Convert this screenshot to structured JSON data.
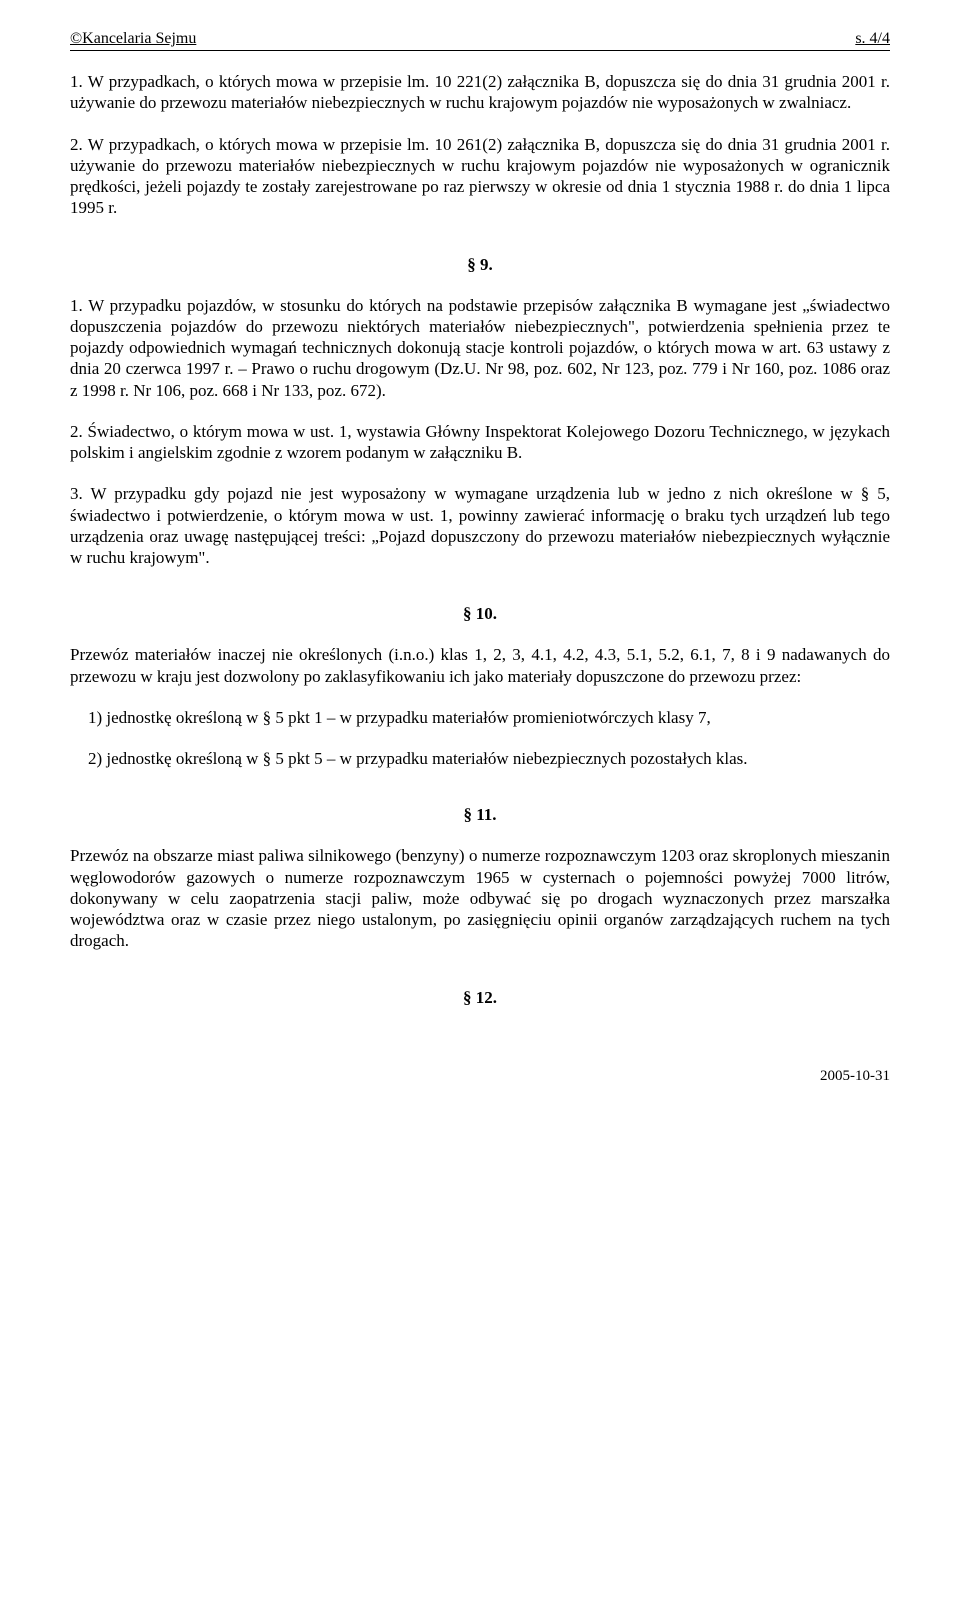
{
  "header": {
    "left": "©Kancelaria Sejmu",
    "right": "s. 4/4"
  },
  "p1": "1. W przypadkach, o których mowa w przepisie lm. 10 221(2) załącznika B, dopuszcza się do dnia 31 grudnia 2001 r. używanie do przewozu materiałów niebezpiecznych w ruchu krajowym pojazdów nie wyposażonych w zwalniacz.",
  "p2": "2. W przypadkach, o których mowa w przepisie lm. 10 261(2) załącznika B, dopuszcza się do dnia 31 grudnia 2001 r. używanie do przewozu materiałów niebezpiecznych w ruchu krajowym pojazdów nie wyposażonych w ogranicznik prędkości, jeżeli pojazdy te zostały zarejestrowane po raz pierwszy w okresie od dnia 1 stycznia 1988 r. do dnia 1 lipca 1995 r.",
  "s9": {
    "num": "§ 9.",
    "p1": "1. W przypadku pojazdów, w stosunku do których na podstawie przepisów załącznika B wymagane jest „świadectwo dopuszczenia pojazdów do przewozu niektórych materiałów niebezpiecznych\", potwierdzenia spełnienia przez te pojazdy odpowiednich wymagań technicznych dokonują stacje kontroli pojazdów, o których mowa w art. 63 ustawy z dnia 20 czerwca 1997 r. – Prawo o ruchu drogowym (Dz.U. Nr 98, poz. 602, Nr 123, poz. 779 i Nr 160, poz. 1086 oraz z 1998 r. Nr 106, poz. 668 i Nr 133, poz. 672).",
    "p2": "2. Świadectwo, o którym mowa w ust. 1, wystawia Główny Inspektorat Kolejowego Dozoru Technicznego, w językach polskim i angielskim zgodnie z wzorem podanym w załączniku B.",
    "p3": "3. W przypadku gdy pojazd nie jest wyposażony w wymagane urządzenia lub w jedno z nich określone w § 5, świadectwo i potwierdzenie, o którym mowa w ust. 1, powinny zawierać informację o braku tych urządzeń lub tego urządzenia oraz uwagę następującej treści: „Pojazd dopuszczony do przewozu materiałów niebezpiecznych wyłącznie w ruchu krajowym\"."
  },
  "s10": {
    "num": "§ 10.",
    "intro": "Przewóz materiałów inaczej nie określonych (i.n.o.) klas 1, 2, 3, 4.1, 4.2, 4.3, 5.1, 5.2, 6.1, 7, 8 i 9 nadawanych do przewozu w kraju jest dozwolony po zaklasyfikowaniu ich jako materiały dopuszczone do przewozu przez:",
    "li1": "1) jednostkę określoną w § 5 pkt 1 – w przypadku materiałów promieniotwórczych klasy 7,",
    "li2": "2) jednostkę określoną w § 5 pkt 5 – w przypadku materiałów niebezpiecznych pozostałych klas."
  },
  "s11": {
    "num": "§ 11.",
    "p": "Przewóz na obszarze miast paliwa silnikowego (benzyny) o numerze rozpoznawczym 1203 oraz skroplonych mieszanin węglowodorów gazowych o numerze rozpoznawczym 1965 w cysternach o pojemności powyżej 7000 litrów, dokonywany w celu zaopatrzenia stacji paliw, może odbywać się po drogach wyznaczonych przez marszałka województwa oraz w czasie przez niego ustalonym, po zasięgnięciu opinii organów zarządzających ruchem na tych drogach."
  },
  "s12": {
    "num": "§ 12."
  },
  "footer": {
    "date": "2005-10-31"
  }
}
